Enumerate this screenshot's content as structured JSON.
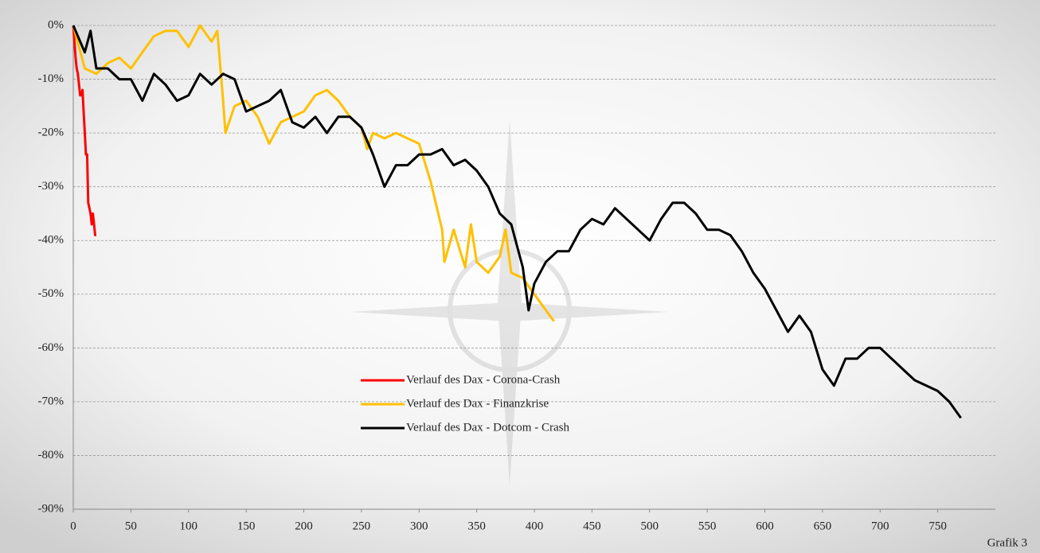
{
  "chart_data": {
    "type": "line",
    "annotation": "Grafik 3",
    "xlim": [
      0,
      800
    ],
    "xticks": [
      0,
      50,
      100,
      150,
      200,
      250,
      300,
      350,
      400,
      450,
      500,
      550,
      600,
      650,
      700,
      750
    ],
    "ylim": [
      -90,
      0
    ],
    "yticks": [
      {
        "value": 0,
        "label": "0%"
      },
      {
        "value": -10,
        "label": "-10%"
      },
      {
        "value": -20,
        "label": "-20%"
      },
      {
        "value": -30,
        "label": "-30%"
      },
      {
        "value": -40,
        "label": "-40%"
      },
      {
        "value": -50,
        "label": "-50%"
      },
      {
        "value": -60,
        "label": "-60%"
      },
      {
        "value": -70,
        "label": "-70%"
      },
      {
        "value": -80,
        "label": "-80%"
      },
      {
        "value": -90,
        "label": "-90%"
      }
    ],
    "grid": true,
    "series": [
      {
        "name": "Verlauf des Dax - Corona-Crash",
        "color": "#ff0000",
        "x": [
          0,
          1,
          2,
          3,
          4,
          5,
          6,
          7,
          8,
          9,
          10,
          11,
          12,
          13,
          14,
          15,
          16,
          17,
          18,
          19,
          20
        ],
        "values": [
          0,
          -3,
          -6,
          -8,
          -9,
          -11,
          -13,
          -13,
          -12,
          -16,
          -20,
          -24,
          -24,
          -33,
          -34,
          -35,
          -37,
          -35,
          -37,
          -39,
          -39
        ]
      },
      {
        "name": "Verlauf des Dax - Finanzkrise",
        "color": "#ffc000",
        "x": [
          0,
          10,
          20,
          30,
          40,
          50,
          60,
          70,
          80,
          90,
          100,
          105,
          110,
          120,
          125,
          130,
          132,
          140,
          150,
          160,
          170,
          180,
          190,
          200,
          210,
          220,
          230,
          240,
          250,
          255,
          260,
          270,
          280,
          290,
          300,
          310,
          320,
          322,
          330,
          340,
          345,
          350,
          360,
          370,
          375,
          380,
          390,
          400,
          410,
          417
        ],
        "values": [
          0,
          -8,
          -9,
          -7,
          -6,
          -8,
          -5,
          -2,
          -1,
          -1,
          -4,
          -2,
          0,
          -3,
          -1,
          -14,
          -20,
          -15,
          -14,
          -17,
          -22,
          -18,
          -17,
          -16,
          -13,
          -12,
          -14,
          -17,
          -19,
          -23,
          -20,
          -21,
          -20,
          -21,
          -22,
          -29,
          -38,
          -44,
          -38,
          -45,
          -37,
          -44,
          -46,
          -43,
          -38,
          -46,
          -47,
          -50,
          -53,
          -55
        ]
      },
      {
        "name": "Verlauf des Dax - Dotcom - Crash",
        "color": "#000000",
        "x": [
          0,
          10,
          15,
          20,
          30,
          40,
          50,
          60,
          70,
          80,
          90,
          100,
          110,
          120,
          130,
          140,
          150,
          160,
          170,
          180,
          190,
          200,
          210,
          220,
          230,
          240,
          250,
          260,
          270,
          280,
          290,
          300,
          310,
          320,
          330,
          340,
          350,
          360,
          370,
          380,
          390,
          395,
          400,
          410,
          420,
          430,
          440,
          450,
          460,
          470,
          480,
          490,
          500,
          510,
          520,
          530,
          540,
          550,
          560,
          570,
          580,
          590,
          600,
          610,
          620,
          630,
          640,
          650,
          660,
          670,
          680,
          690,
          700,
          710,
          720,
          730,
          740,
          750,
          760,
          770
        ],
        "values": [
          0,
          -5,
          -1,
          -8,
          -8,
          -10,
          -10,
          -14,
          -9,
          -11,
          -14,
          -13,
          -9,
          -11,
          -9,
          -10,
          -16,
          -15,
          -14,
          -12,
          -18,
          -19,
          -17,
          -20,
          -17,
          -17,
          -19,
          -24,
          -30,
          -26,
          -26,
          -24,
          -24,
          -23,
          -26,
          -25,
          -27,
          -30,
          -35,
          -37,
          -45,
          -53,
          -48,
          -44,
          -42,
          -42,
          -38,
          -36,
          -37,
          -34,
          -36,
          -38,
          -40,
          -36,
          -33,
          -33,
          -35,
          -38,
          -38,
          -39,
          -42,
          -46,
          -49,
          -53,
          -57,
          -54,
          -57,
          -64,
          -67,
          -62,
          -62,
          -60,
          -60,
          -62,
          -64,
          -66,
          -67,
          -68,
          -70,
          -73
        ]
      }
    ]
  }
}
